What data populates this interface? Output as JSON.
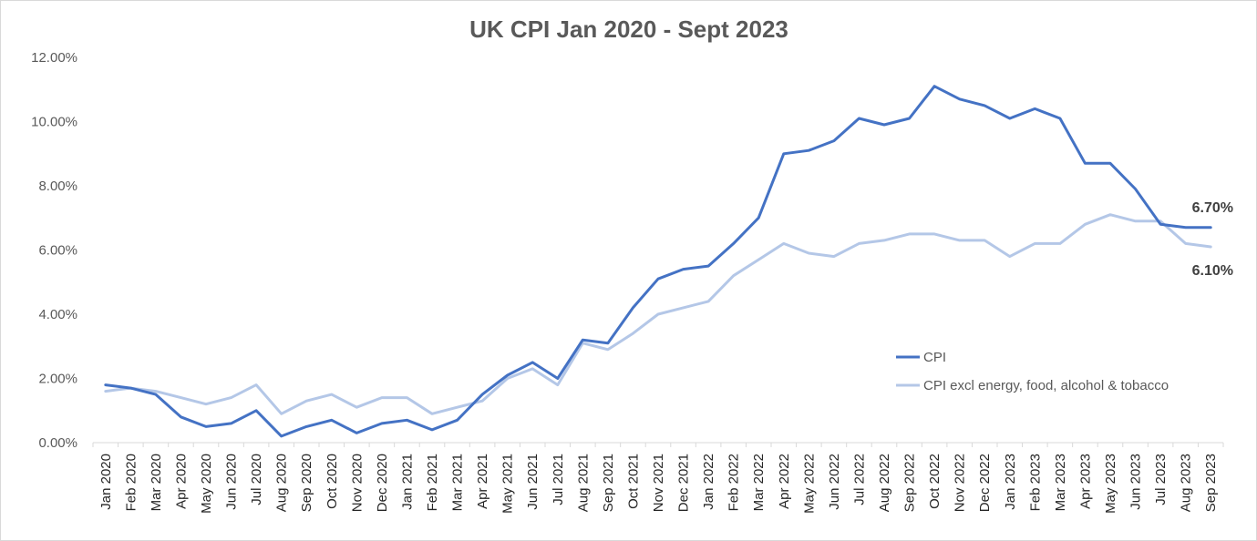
{
  "chart_data": {
    "type": "line",
    "title": "UK CPI Jan 2020 - Sept 2023",
    "xlabel": "",
    "ylabel": "",
    "ylim": [
      0,
      12
    ],
    "y_tick_labels": [
      "0.00%",
      "2.00%",
      "4.00%",
      "6.00%",
      "8.00%",
      "10.00%",
      "12.00%"
    ],
    "grid": false,
    "legend_position": "right",
    "categories": [
      "Jan 2020",
      "Feb 2020",
      "Mar 2020",
      "Apr 2020",
      "May 2020",
      "Jun 2020",
      "Jul 2020",
      "Aug 2020",
      "Sep 2020",
      "Oct 2020",
      "Nov 2020",
      "Dec 2020",
      "Jan 2021",
      "Feb 2021",
      "Mar 2021",
      "Apr 2021",
      "May 2021",
      "Jun 2021",
      "Jul 2021",
      "Aug 2021",
      "Sep 2021",
      "Oct 2021",
      "Nov 2021",
      "Dec 2021",
      "Jan 2022",
      "Feb 2022",
      "Mar 2022",
      "Apr 2022",
      "May 2022",
      "Jun 2022",
      "Jul 2022",
      "Aug 2022",
      "Sep 2022",
      "Oct 2022",
      "Nov 2022",
      "Dec 2022",
      "Jan 2023",
      "Feb 2023",
      "Mar 2023",
      "Apr 2023",
      "May 2023",
      "Jun 2023",
      "Jul 2023",
      "Aug 2023",
      "Sep 2023"
    ],
    "series": [
      {
        "name": "CPI",
        "color": "#4472c4",
        "values": [
          1.8,
          1.7,
          1.5,
          0.8,
          0.5,
          0.6,
          1.0,
          0.2,
          0.5,
          0.7,
          0.3,
          0.6,
          0.7,
          0.4,
          0.7,
          1.5,
          2.1,
          2.5,
          2.0,
          3.2,
          3.1,
          4.2,
          5.1,
          5.4,
          5.5,
          6.2,
          7.0,
          9.0,
          9.1,
          9.4,
          10.1,
          9.9,
          10.1,
          11.1,
          10.7,
          10.5,
          10.1,
          10.4,
          10.1,
          8.7,
          8.7,
          7.9,
          6.8,
          6.7,
          6.7
        ],
        "end_label": "6.70%"
      },
      {
        "name": "CPI excl energy, food, alcohol & tobacco",
        "color": "#b4c7e7",
        "values": [
          1.6,
          1.7,
          1.6,
          1.4,
          1.2,
          1.4,
          1.8,
          0.9,
          1.3,
          1.5,
          1.1,
          1.4,
          1.4,
          0.9,
          1.1,
          1.3,
          2.0,
          2.3,
          1.8,
          3.1,
          2.9,
          3.4,
          4.0,
          4.2,
          4.4,
          5.2,
          5.7,
          6.2,
          5.9,
          5.8,
          6.2,
          6.3,
          6.5,
          6.5,
          6.3,
          6.3,
          5.8,
          6.2,
          6.2,
          6.8,
          7.1,
          6.9,
          6.9,
          6.2,
          6.1
        ],
        "end_label": "6.10%"
      }
    ]
  }
}
